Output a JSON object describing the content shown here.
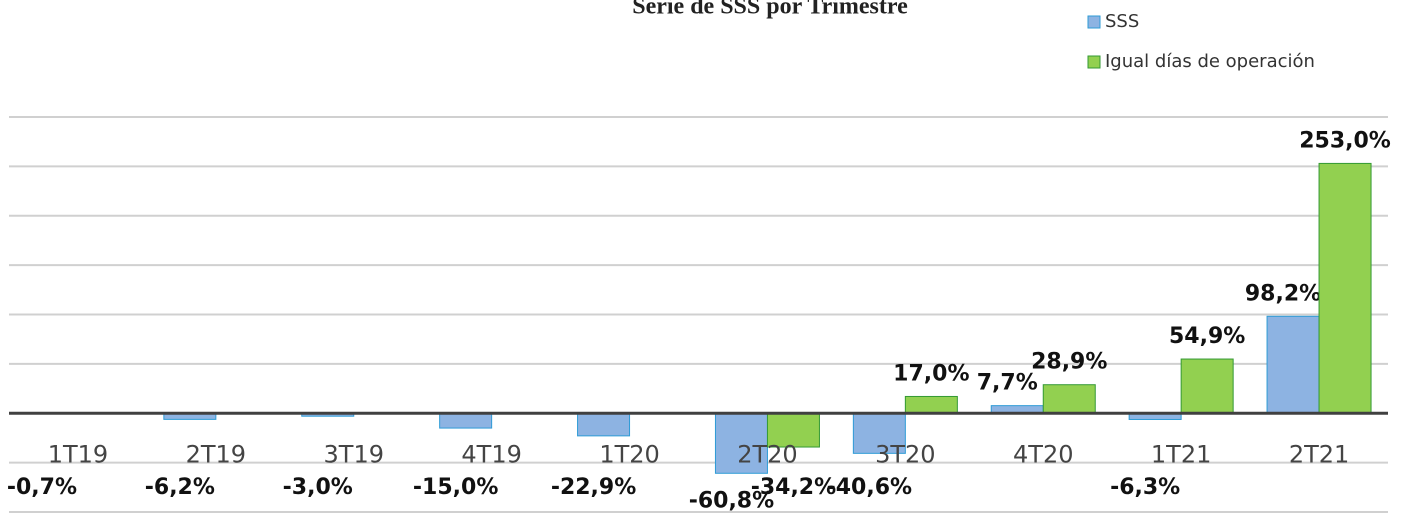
{
  "chart_data": {
    "type": "bar",
    "title": "Serie de  SSS por Trimestre",
    "categories": [
      "1T19",
      "2T19",
      "3T19",
      "4T19",
      "1T20",
      "2T20",
      "3T20",
      "4T20",
      "1T21",
      "2T21"
    ],
    "series": [
      {
        "name": "SSS",
        "color": "#8db3e2",
        "values": [
          -0.7,
          -6.2,
          -3.0,
          -15.0,
          -22.9,
          -60.8,
          -40.6,
          7.7,
          -6.3,
          98.2
        ],
        "value_labels": [
          "-0,7%",
          "-6,2%",
          "-3,0%",
          "-15,0%",
          "-22,9%",
          "-60,8%",
          "-40,6%",
          "7,7%",
          "-6,3%",
          "98,2%"
        ]
      },
      {
        "name": "Igual días de operación",
        "color": "#92d050",
        "values": [
          null,
          null,
          null,
          null,
          null,
          -34.2,
          17.0,
          28.9,
          54.9,
          253.0
        ],
        "value_labels": [
          null,
          null,
          null,
          null,
          null,
          "-34,2%",
          "17,0%",
          "28,9%",
          "54,9%",
          "253,0%"
        ]
      }
    ],
    "ylim": [
      -100,
      300
    ],
    "yticks": [
      -100,
      -50,
      0,
      50,
      100,
      150,
      200,
      250,
      300
    ],
    "grid": true
  }
}
